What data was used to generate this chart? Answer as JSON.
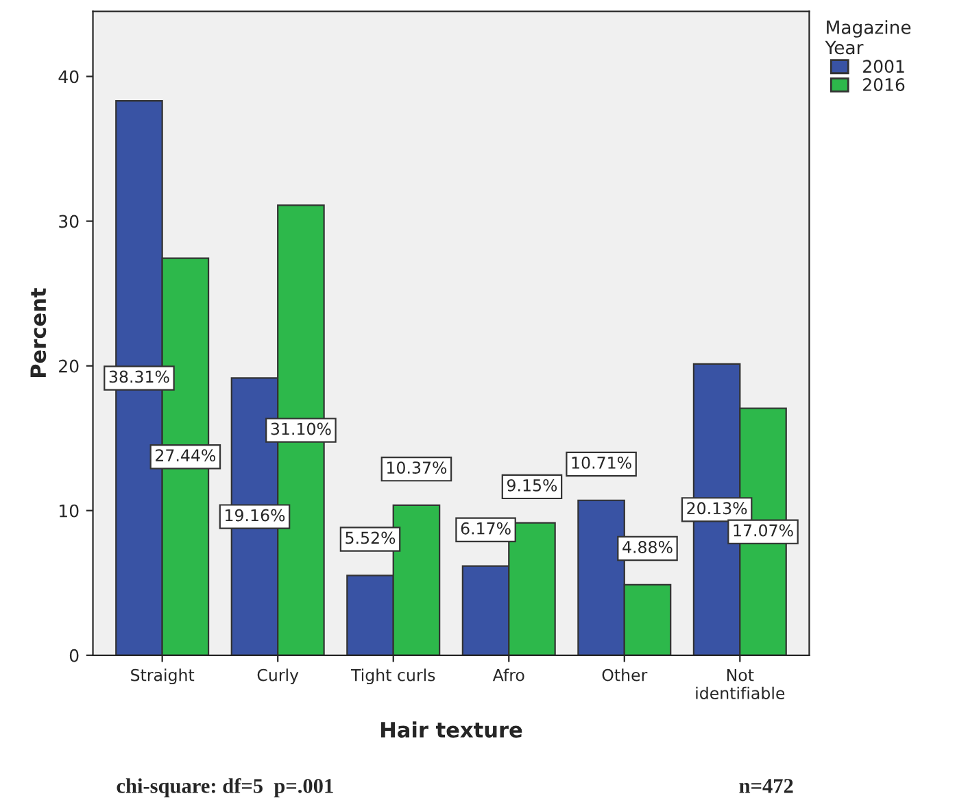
{
  "chart_data": {
    "type": "bar",
    "xlabel": "Hair texture",
    "ylabel": "Percent",
    "legend_title": "Magazine\nYear",
    "legend": "top right",
    "categories": [
      "Straight",
      "Curly",
      "Tight curls",
      "Afro",
      "Other",
      "Not\nidentifiable"
    ],
    "series": [
      {
        "name": "2001",
        "color": "#3953a4",
        "values": [
          38.31,
          19.16,
          5.52,
          6.17,
          10.71,
          20.13
        ],
        "value_labels": [
          "38.31%",
          "19.16%",
          "5.52%",
          "6.17%",
          "10.71%",
          "20.13%"
        ]
      },
      {
        "name": "2016",
        "color": "#2db84b",
        "values": [
          27.44,
          31.1,
          10.37,
          9.15,
          4.88,
          17.07
        ],
        "value_labels": [
          "27.44%",
          "31.10%",
          "10.37%",
          "9.15%",
          "4.88%",
          "17.07%"
        ]
      }
    ],
    "ylim": [
      0,
      44.5
    ],
    "yticks": [
      0,
      10,
      20,
      30,
      40
    ],
    "grid": false,
    "annotations": [
      "chi-square: df=5  p=.001",
      "n=472"
    ]
  }
}
